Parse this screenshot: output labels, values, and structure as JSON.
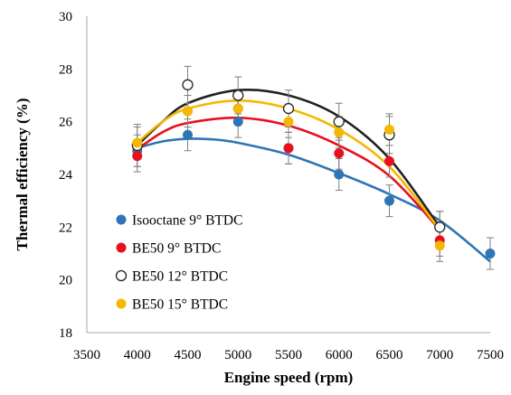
{
  "chart_data": {
    "type": "scatter",
    "xlabel": "Engine speed (rpm)",
    "ylabel": "Thermal efficiency (%)",
    "xlim": [
      3500,
      7500
    ],
    "ylim": [
      18,
      30
    ],
    "xticks": [
      "3500",
      "4500",
      "5500",
      "6500",
      "7500",
      "4000",
      "5000",
      "6000",
      "7000"
    ],
    "yticks": [
      "18",
      "20",
      "22",
      "24",
      "26",
      "28",
      "30"
    ],
    "legend_position": "bottom-left",
    "grid": false,
    "series": [
      {
        "name": "Isooctane 9° BTDC",
        "color": "#2e75b6",
        "marker": "filled",
        "points": [
          {
            "x": 4000,
            "y": 24.9,
            "err": 0.6
          },
          {
            "x": 4500,
            "y": 25.5,
            "err": 0.6
          },
          {
            "x": 5000,
            "y": 26.0,
            "err": 0.6
          },
          {
            "x": 5500,
            "y": 25.0,
            "err": 0.6
          },
          {
            "x": 6000,
            "y": 24.0,
            "err": 0.6
          },
          {
            "x": 6500,
            "y": 23.0,
            "err": 0.6
          },
          {
            "x": 7000,
            "y": 22.0,
            "err": 0.6
          },
          {
            "x": 7500,
            "y": 21.0,
            "err": 0.6
          }
        ],
        "trend": [
          {
            "x": 4000,
            "y": 25.0
          },
          {
            "x": 4250,
            "y": 25.25
          },
          {
            "x": 4500,
            "y": 25.35
          },
          {
            "x": 4750,
            "y": 25.33
          },
          {
            "x": 5000,
            "y": 25.2
          },
          {
            "x": 5500,
            "y": 24.75
          },
          {
            "x": 6000,
            "y": 24.05
          },
          {
            "x": 6500,
            "y": 23.25
          },
          {
            "x": 7000,
            "y": 22.25
          },
          {
            "x": 7500,
            "y": 20.7
          }
        ]
      },
      {
        "name": "BE50 9° BTDC",
        "color": "#e8101e",
        "marker": "filled",
        "points": [
          {
            "x": 4000,
            "y": 24.7,
            "err": 0.6
          },
          {
            "x": 4500,
            "y": 26.4,
            "err": 0.6
          },
          {
            "x": 5000,
            "y": 26.5,
            "err": 0.6
          },
          {
            "x": 5500,
            "y": 25.0,
            "err": 0.6
          },
          {
            "x": 6000,
            "y": 24.8,
            "err": 0.6
          },
          {
            "x": 6500,
            "y": 24.5,
            "err": 0.6
          },
          {
            "x": 7000,
            "y": 21.5,
            "err": 0.6
          }
        ],
        "trend": [
          {
            "x": 4000,
            "y": 24.95
          },
          {
            "x": 4250,
            "y": 25.6
          },
          {
            "x": 4500,
            "y": 25.95
          },
          {
            "x": 5000,
            "y": 26.15
          },
          {
            "x": 5500,
            "y": 25.85
          },
          {
            "x": 6000,
            "y": 25.1
          },
          {
            "x": 6500,
            "y": 23.95
          },
          {
            "x": 7000,
            "y": 21.9
          }
        ]
      },
      {
        "name": "BE50 12° BTDC",
        "color": "#222222",
        "marker": "hollow",
        "points": [
          {
            "x": 4000,
            "y": 25.1,
            "err": 0.8
          },
          {
            "x": 4500,
            "y": 27.4,
            "err": 0.7
          },
          {
            "x": 5000,
            "y": 27.0,
            "err": 0.7
          },
          {
            "x": 5500,
            "y": 26.5,
            "err": 0.7
          },
          {
            "x": 6000,
            "y": 26.0,
            "err": 0.7
          },
          {
            "x": 6500,
            "y": 25.5,
            "err": 0.7
          },
          {
            "x": 7000,
            "y": 22.0,
            "err": 0.6
          }
        ],
        "trend": [
          {
            "x": 4000,
            "y": 25.1
          },
          {
            "x": 4250,
            "y": 26.0
          },
          {
            "x": 4500,
            "y": 26.7
          },
          {
            "x": 5000,
            "y": 27.2
          },
          {
            "x": 5500,
            "y": 27.0
          },
          {
            "x": 6000,
            "y": 26.2
          },
          {
            "x": 6500,
            "y": 24.6
          },
          {
            "x": 7000,
            "y": 22.0
          }
        ]
      },
      {
        "name": "BE50 15° BTDC",
        "color": "#f5b800",
        "marker": "filled",
        "points": [
          {
            "x": 4000,
            "y": 25.2,
            "err": 0.6
          },
          {
            "x": 4500,
            "y": 26.4,
            "err": 0.6
          },
          {
            "x": 5000,
            "y": 26.5,
            "err": 0.6
          },
          {
            "x": 5500,
            "y": 26.0,
            "err": 0.6
          },
          {
            "x": 6000,
            "y": 25.6,
            "err": 0.6
          },
          {
            "x": 6500,
            "y": 25.7,
            "err": 0.6
          },
          {
            "x": 7000,
            "y": 21.3,
            "err": 0.6
          }
        ],
        "trend": [
          {
            "x": 4000,
            "y": 25.2
          },
          {
            "x": 4250,
            "y": 26.0
          },
          {
            "x": 4500,
            "y": 26.5
          },
          {
            "x": 5000,
            "y": 26.8
          },
          {
            "x": 5500,
            "y": 26.5
          },
          {
            "x": 6000,
            "y": 25.7
          },
          {
            "x": 6500,
            "y": 24.3
          },
          {
            "x": 7000,
            "y": 21.9
          }
        ]
      }
    ]
  }
}
